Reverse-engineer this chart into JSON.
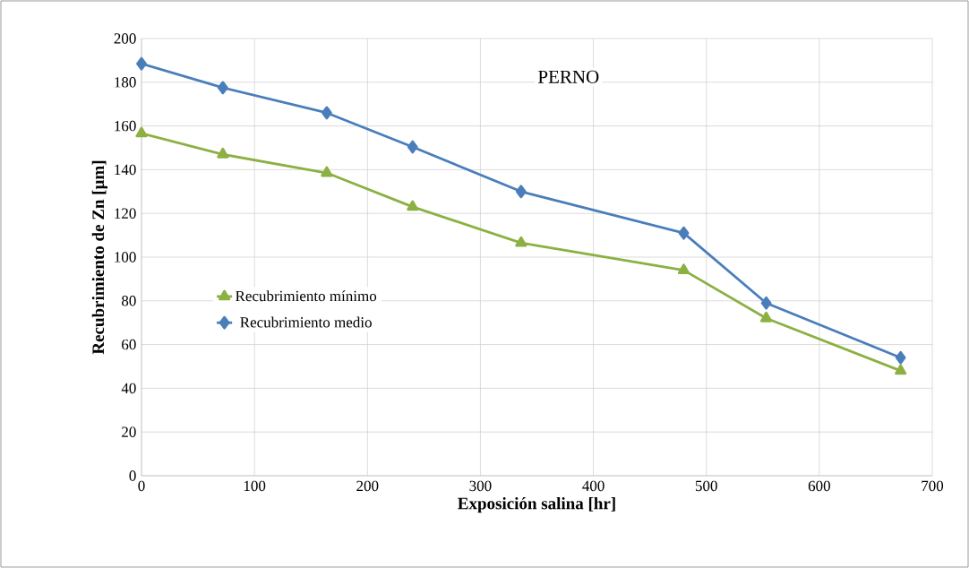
{
  "chart_data": {
    "type": "line",
    "title": "PERNO",
    "xlabel": "Exposición salina [hr]",
    "ylabel": "Recubrimiento de Zn [µm]",
    "x": [
      0,
      72,
      164,
      240,
      336,
      480,
      553,
      672
    ],
    "series": [
      {
        "name": "Recubrimiento mínimo",
        "color": "#8db043",
        "marker": "triangle",
        "values": [
          156.6,
          147,
          138.5,
          123,
          106.5,
          94,
          72,
          48
        ]
      },
      {
        "name": "Recubrimiento medio",
        "color": "#4a7ebb",
        "marker": "diamond",
        "values": [
          188.5,
          177.5,
          166,
          150.4,
          130,
          111,
          79,
          54
        ]
      }
    ],
    "xlim": [
      0,
      700
    ],
    "xticks": [
      0,
      100,
      200,
      300,
      400,
      500,
      600,
      700
    ],
    "ylim": [
      0,
      200
    ],
    "yticks": [
      0,
      20,
      40,
      60,
      80,
      100,
      120,
      140,
      160,
      180,
      200
    ],
    "grid": true,
    "legend": "left",
    "line_style": "solid"
  }
}
